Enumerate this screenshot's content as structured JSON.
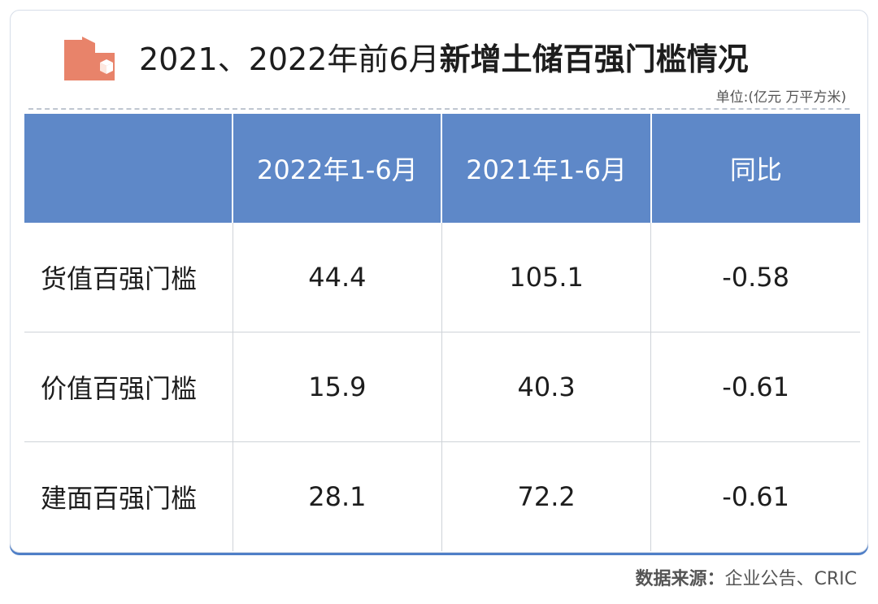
{
  "title": {
    "prefix": "2021、2022年前6月",
    "emphasis": "新增土储百强门槛情况"
  },
  "unit_note": "单位:(亿元 万平方米)",
  "source": {
    "label": "数据来源：",
    "text": "企业公告、CRIC"
  },
  "colors": {
    "header_bg": "#5e88c8",
    "logo": "#e8836a",
    "card_shadow": "#4f7fc7"
  },
  "chart_data": {
    "type": "table",
    "columns": [
      "",
      "2022年1-6月",
      "2021年1-6月",
      "同比"
    ],
    "rows": [
      {
        "label": "货值百强门槛",
        "cells": [
          "44.4",
          "105.1",
          "-0.58"
        ]
      },
      {
        "label": "价值百强门槛",
        "cells": [
          "15.9",
          "40.3",
          "-0.61"
        ]
      },
      {
        "label": "建面百强门槛",
        "cells": [
          "28.1",
          "72.2",
          "-0.61"
        ]
      }
    ]
  }
}
